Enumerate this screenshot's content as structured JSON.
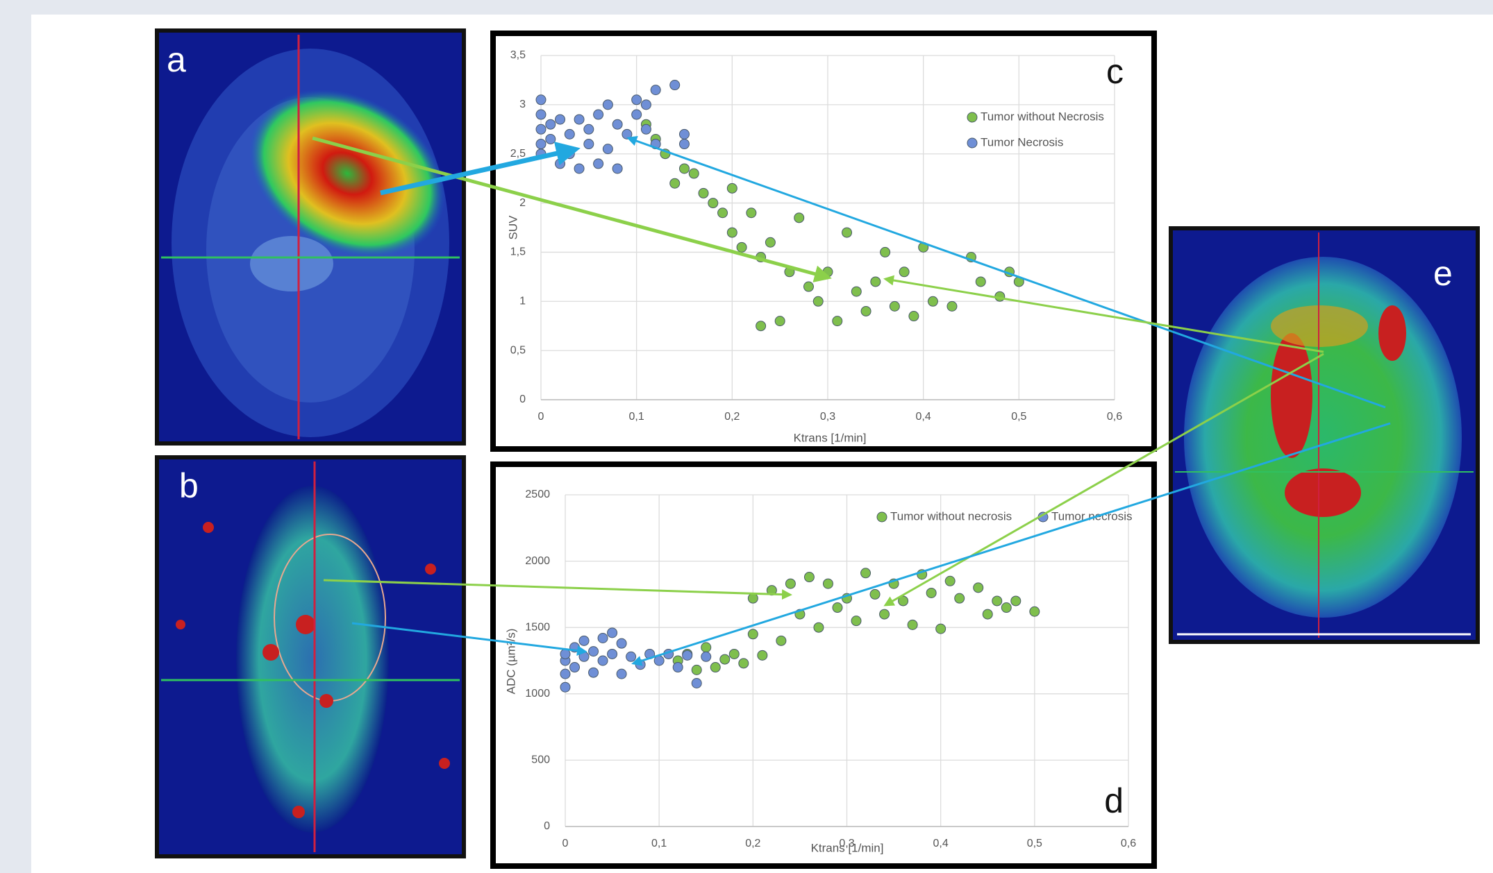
{
  "panel_labels": [
    "a",
    "b",
    "e"
  ],
  "chart_data": [
    {
      "type": "scatter",
      "annotation": "c",
      "x_label": "Ktrans [1/min]",
      "y_label": "SUV",
      "xlim": [
        0,
        0.6
      ],
      "ylim": [
        0,
        3.5
      ],
      "grid": true,
      "legend": "upper right",
      "xticks": [
        0,
        {
          "value": 0.1,
          "label": "0,1"
        },
        {
          "value": 0.2,
          "label": "0,2"
        },
        {
          "value": 0.3,
          "label": "0,3"
        },
        {
          "value": 0.4,
          "label": "0,4"
        },
        {
          "value": 0.5,
          "label": "0,5"
        },
        {
          "value": 0.6,
          "label": "0,6"
        }
      ],
      "yticks": [
        0,
        {
          "value": 0.5,
          "label": "0,5"
        },
        1,
        {
          "value": 1.5,
          "label": "1,5"
        },
        2,
        {
          "value": 2.5,
          "label": "2,5"
        },
        3,
        {
          "value": 3.5,
          "label": "3,5"
        }
      ],
      "series": [
        {
          "name": "Tumor without Necrosis",
          "color": "#7fbf4d",
          "x": [
            0.11,
            0.12,
            0.13,
            0.14,
            0.15,
            0.16,
            0.17,
            0.18,
            0.19,
            0.2,
            0.2,
            0.21,
            0.22,
            0.23,
            0.23,
            0.24,
            0.25,
            0.26,
            0.27,
            0.28,
            0.29,
            0.3,
            0.31,
            0.32,
            0.33,
            0.34,
            0.35,
            0.36,
            0.37,
            0.38,
            0.39,
            0.4,
            0.41,
            0.43,
            0.45,
            0.46,
            0.48,
            0.49,
            0.5
          ],
          "values": [
            2.8,
            2.65,
            2.5,
            2.2,
            2.35,
            2.3,
            2.1,
            2.0,
            1.9,
            2.15,
            1.7,
            1.55,
            1.9,
            1.45,
            0.75,
            1.6,
            0.8,
            1.3,
            1.85,
            1.15,
            1.0,
            1.3,
            0.8,
            1.7,
            1.1,
            0.9,
            1.2,
            1.5,
            0.95,
            1.3,
            0.85,
            1.55,
            1.0,
            0.95,
            1.45,
            1.2,
            1.05,
            1.3,
            1.2
          ]
        },
        {
          "name": "Tumor Necrosis",
          "color": "#6f8fd6",
          "x": [
            0,
            0,
            0,
            0,
            0,
            0.01,
            0.01,
            0.02,
            0.02,
            0.03,
            0.03,
            0.04,
            0.04,
            0.05,
            0.05,
            0.06,
            0.06,
            0.07,
            0.07,
            0.08,
            0.08,
            0.09,
            0.1,
            0.1,
            0.11,
            0.11,
            0.12,
            0.12,
            0.14,
            0.15,
            0.15
          ],
          "values": [
            3.05,
            2.9,
            2.75,
            2.6,
            2.5,
            2.8,
            2.65,
            2.85,
            2.4,
            2.7,
            2.5,
            2.85,
            2.35,
            2.6,
            2.75,
            2.9,
            2.4,
            3.0,
            2.55,
            2.35,
            2.8,
            2.7,
            3.05,
            2.9,
            3.0,
            2.75,
            2.6,
            3.15,
            3.2,
            2.7,
            2.6
          ]
        }
      ]
    },
    {
      "type": "scatter",
      "annotation": "d",
      "x_label": "Ktrans [1/min]",
      "y_label": "ADC (µm²/s)",
      "xlim": [
        0,
        0.6
      ],
      "ylim": [
        0,
        2500
      ],
      "grid": true,
      "legend": "top",
      "xticks": [
        0,
        {
          "value": 0.1,
          "label": "0,1"
        },
        {
          "value": 0.2,
          "label": "0,2"
        },
        {
          "value": 0.3,
          "label": "0,3"
        },
        {
          "value": 0.4,
          "label": "0,4"
        },
        {
          "value": 0.5,
          "label": "0,5"
        },
        {
          "value": 0.6,
          "label": "0,6"
        }
      ],
      "yticks": [
        0,
        500,
        1000,
        1500,
        2000,
        2500
      ],
      "series": [
        {
          "name": "Tumor without necrosis",
          "color": "#7fbf4d",
          "x": [
            0.12,
            0.13,
            0.14,
            0.15,
            0.16,
            0.17,
            0.18,
            0.19,
            0.2,
            0.2,
            0.21,
            0.22,
            0.23,
            0.24,
            0.25,
            0.26,
            0.27,
            0.28,
            0.29,
            0.3,
            0.31,
            0.32,
            0.33,
            0.34,
            0.35,
            0.36,
            0.37,
            0.38,
            0.39,
            0.4,
            0.41,
            0.42,
            0.44,
            0.45,
            0.46,
            0.47,
            0.48,
            0.5
          ],
          "values": [
            1250,
            1300,
            1180,
            1350,
            1200,
            1260,
            1300,
            1230,
            1720,
            1450,
            1290,
            1780,
            1400,
            1830,
            1600,
            1880,
            1500,
            1830,
            1650,
            1720,
            1550,
            1910,
            1750,
            1600,
            1830,
            1700,
            1520,
            1900,
            1760,
            1490,
            1850,
            1720,
            1800,
            1600,
            1700,
            1650,
            1700,
            1620
          ]
        },
        {
          "name": "Tumor necrosis",
          "color": "#6f8fd6",
          "x": [
            0,
            0,
            0,
            0,
            0.01,
            0.01,
            0.02,
            0.02,
            0.03,
            0.03,
            0.04,
            0.04,
            0.05,
            0.05,
            0.06,
            0.06,
            0.07,
            0.08,
            0.09,
            0.1,
            0.11,
            0.12,
            0.13,
            0.14,
            0.15
          ],
          "values": [
            1050,
            1150,
            1250,
            1300,
            1200,
            1350,
            1280,
            1400,
            1320,
            1160,
            1420,
            1250,
            1460,
            1300,
            1380,
            1150,
            1280,
            1220,
            1300,
            1250,
            1300,
            1200,
            1290,
            1080,
            1280
          ]
        }
      ]
    }
  ]
}
